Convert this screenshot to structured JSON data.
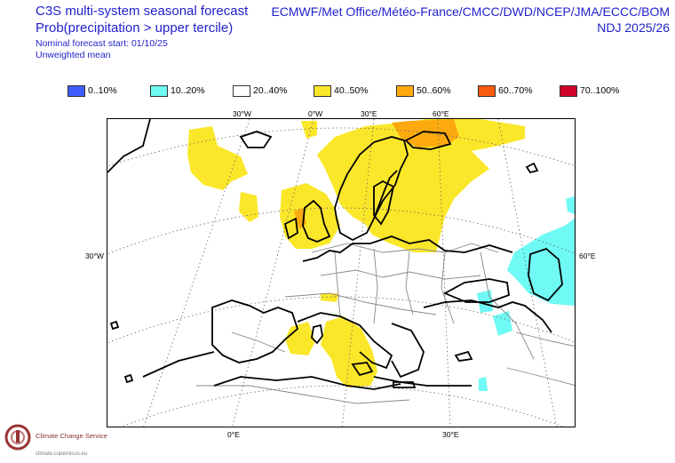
{
  "header": {
    "title_line1": "C3S multi-system seasonal forecast",
    "title_line2": "Prob(precipitation > upper tercile)",
    "start_line": "Nominal forecast start: 01/10/25",
    "mean_line": "Unweighted mean",
    "systems": "ECMWF/Met Office/Météo-France/CMCC/DWD/NCEP/JMA/ECCC/BOM",
    "period": "NDJ 2025/26"
  },
  "legend": [
    {
      "label": "0..10%",
      "color": "#3f5cff"
    },
    {
      "label": "10..20%",
      "color": "#6ffaf5"
    },
    {
      "label": "20..40%",
      "color": "#ffffff"
    },
    {
      "label": "40..50%",
      "color": "#fbe72a"
    },
    {
      "label": "50..60%",
      "color": "#fdaa0f"
    },
    {
      "label": "60..70%",
      "color": "#fb5b0f"
    },
    {
      "label": "70..100%",
      "color": "#d1042c"
    }
  ],
  "axes": {
    "top": [
      "30°W",
      "0°W",
      "30°E",
      "60°E"
    ],
    "left": "30°W",
    "right": "60°E",
    "bottom": [
      "0°E",
      "30°E"
    ]
  },
  "logo": {
    "name": "Climate Change Service",
    "url": "climate.copernicus.eu"
  },
  "map": {
    "regions": [
      {
        "name": "north-atlantic-west",
        "category": "40..50%"
      },
      {
        "name": "scandinavia-north-russia",
        "category": "40..50%"
      },
      {
        "name": "barents-coast",
        "category": "50..60%"
      },
      {
        "name": "british-isles-north-sea",
        "category": "40..50%"
      },
      {
        "name": "italy-central-med",
        "category": "40..50%"
      },
      {
        "name": "sardinia-corsica",
        "category": "40..50%"
      },
      {
        "name": "caspian-region",
        "category": "10..20%"
      },
      {
        "name": "eastern-turkey",
        "category": "10..20%"
      },
      {
        "name": "levant",
        "category": "10..20%"
      }
    ]
  }
}
